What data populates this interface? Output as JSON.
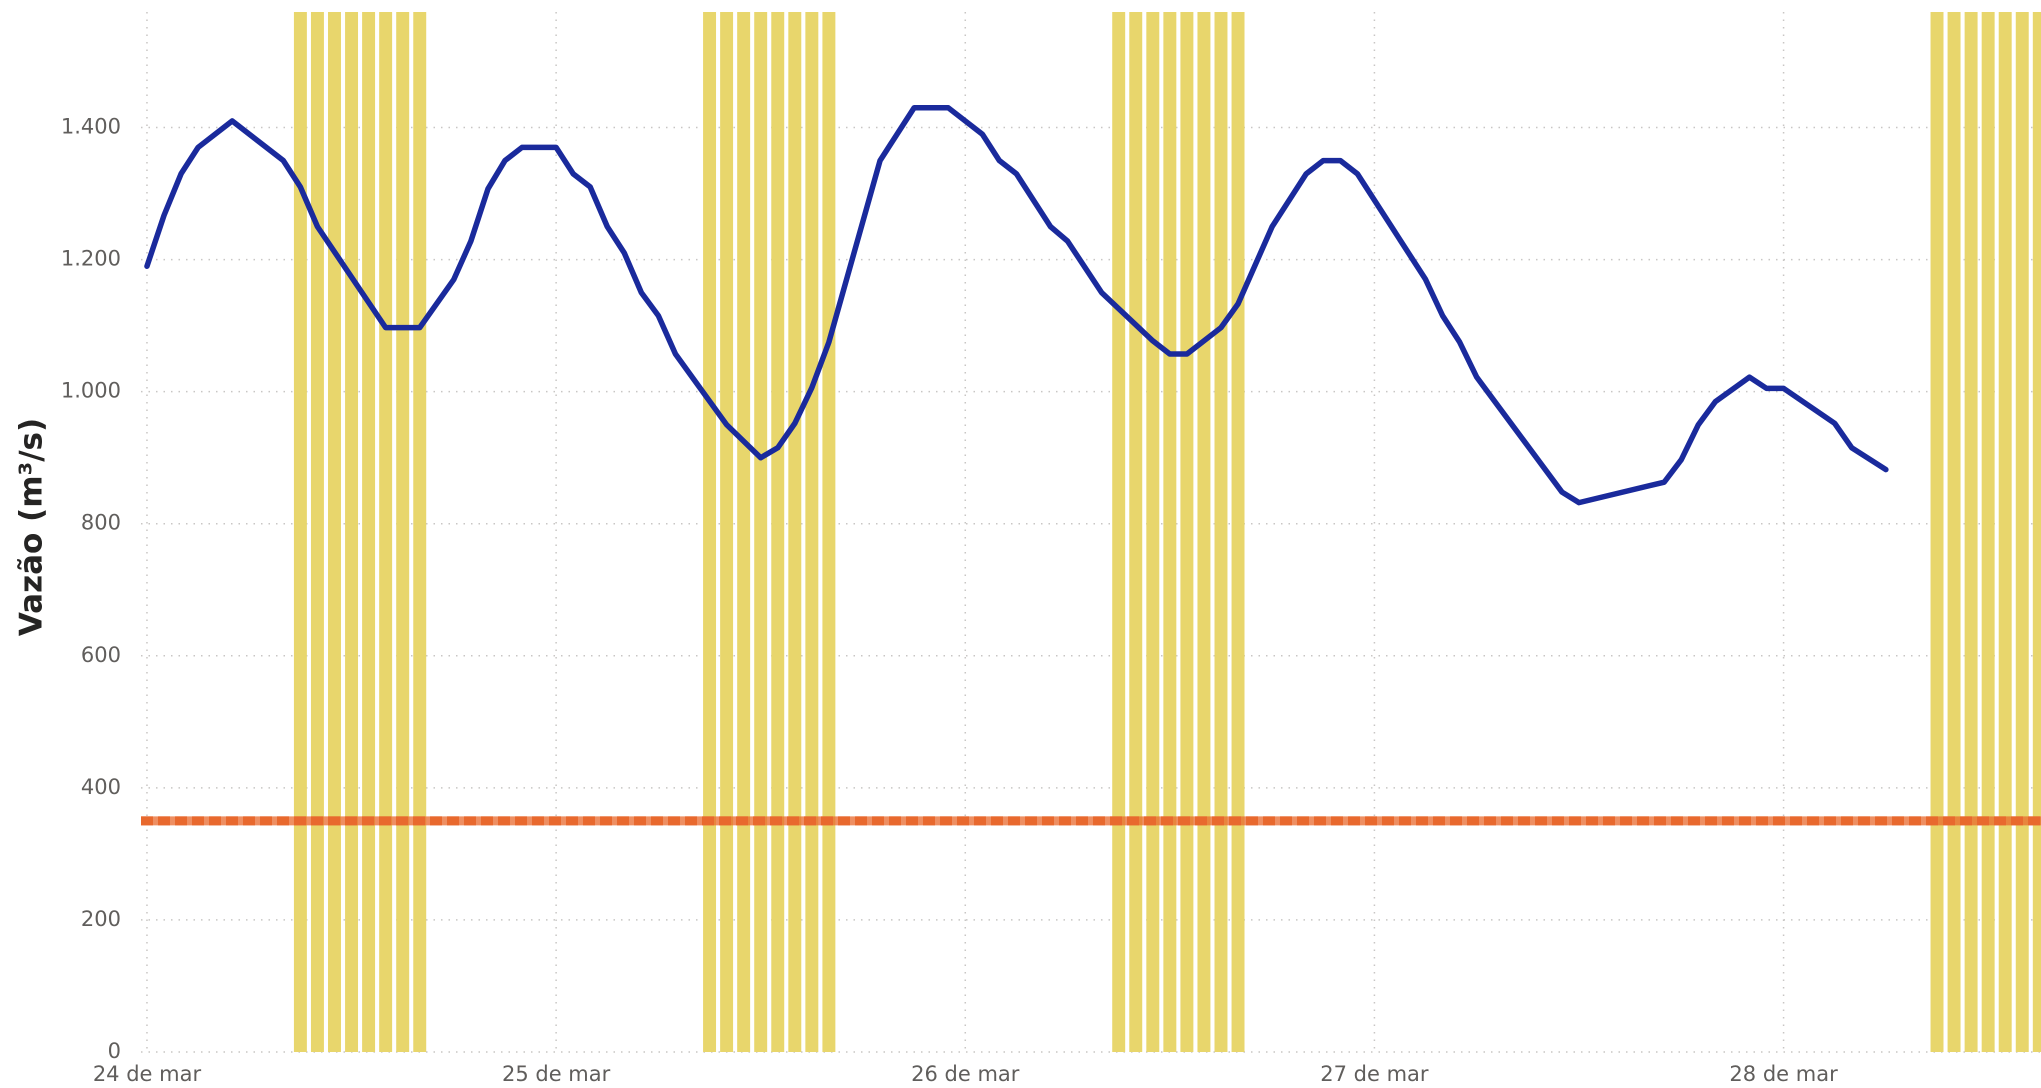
{
  "chart_data": {
    "type": "line",
    "y_label": "Vazão (m³/s)",
    "series": [
      {
        "type": "bar",
        "color": "#e8d66c",
        "x": [
          9,
          10,
          11,
          12,
          13,
          14,
          15,
          16,
          33,
          34,
          35,
          36,
          37,
          38,
          39,
          40,
          57,
          58,
          59,
          60,
          61,
          62,
          63,
          64,
          105,
          106,
          107,
          108,
          109,
          110,
          111
        ],
        "values": [
          1575,
          1575,
          1575,
          1575,
          1575,
          1575,
          1575,
          1575,
          1575,
          1575,
          1575,
          1575,
          1575,
          1575,
          1575,
          1575,
          1575,
          1575,
          1575,
          1575,
          1575,
          1575,
          1575,
          1575,
          1575,
          1575,
          1575,
          1575,
          1575,
          1575,
          1575
        ]
      },
      {
        "type": "line",
        "color": "#1a2a9c",
        "x": [
          0,
          1,
          2,
          3,
          5,
          8,
          9,
          10,
          14,
          16,
          18,
          19,
          20,
          21,
          22,
          24,
          25,
          26,
          27,
          28,
          29,
          30,
          31,
          34,
          36,
          37,
          38,
          39,
          40,
          43,
          45,
          47,
          49,
          50,
          51,
          53,
          54,
          56,
          59,
          60,
          61,
          63,
          64,
          66,
          68,
          69,
          70,
          71,
          75,
          76,
          77,
          78,
          83,
          84,
          89,
          90,
          91,
          92,
          94,
          95,
          96,
          99,
          100,
          102
        ],
        "values": [
          1190,
          1267,
          1330,
          1370,
          1410,
          1350,
          1310,
          1250,
          1097,
          1097,
          1170,
          1228,
          1307,
          1350,
          1370,
          1370,
          1330,
          1310,
          1250,
          1210,
          1150,
          1115,
          1057,
          950,
          900,
          915,
          952,
          1006,
          1075,
          1350,
          1430,
          1430,
          1390,
          1350,
          1330,
          1250,
          1228,
          1150,
          1077,
          1057,
          1057,
          1097,
          1133,
          1250,
          1330,
          1350,
          1350,
          1330,
          1170,
          1115,
          1075,
          1022,
          848,
          832,
          863,
          897,
          950,
          985,
          1022,
          1005,
          1005,
          952,
          915,
          882
        ]
      }
    ],
    "reference_line": {
      "value": 350,
      "color": "#e8692e"
    },
    "xlim": [
      -0.35,
      111.1
    ],
    "xticks": [
      {
        "value": 0,
        "label": "24 de mar"
      },
      {
        "value": 24,
        "label": "25 de mar"
      },
      {
        "value": 48,
        "label": "26 de mar"
      },
      {
        "value": 72,
        "label": "27 de mar"
      },
      {
        "value": 96,
        "label": "28 de mar"
      }
    ],
    "ylim": [
      0,
      1575
    ],
    "yticks": [
      0,
      200,
      400,
      600,
      800,
      {
        "value": 1000,
        "label": "1.000"
      },
      {
        "value": 1200,
        "label": "1.200"
      },
      {
        "value": 1400,
        "label": "1.400"
      }
    ],
    "grid": true
  }
}
